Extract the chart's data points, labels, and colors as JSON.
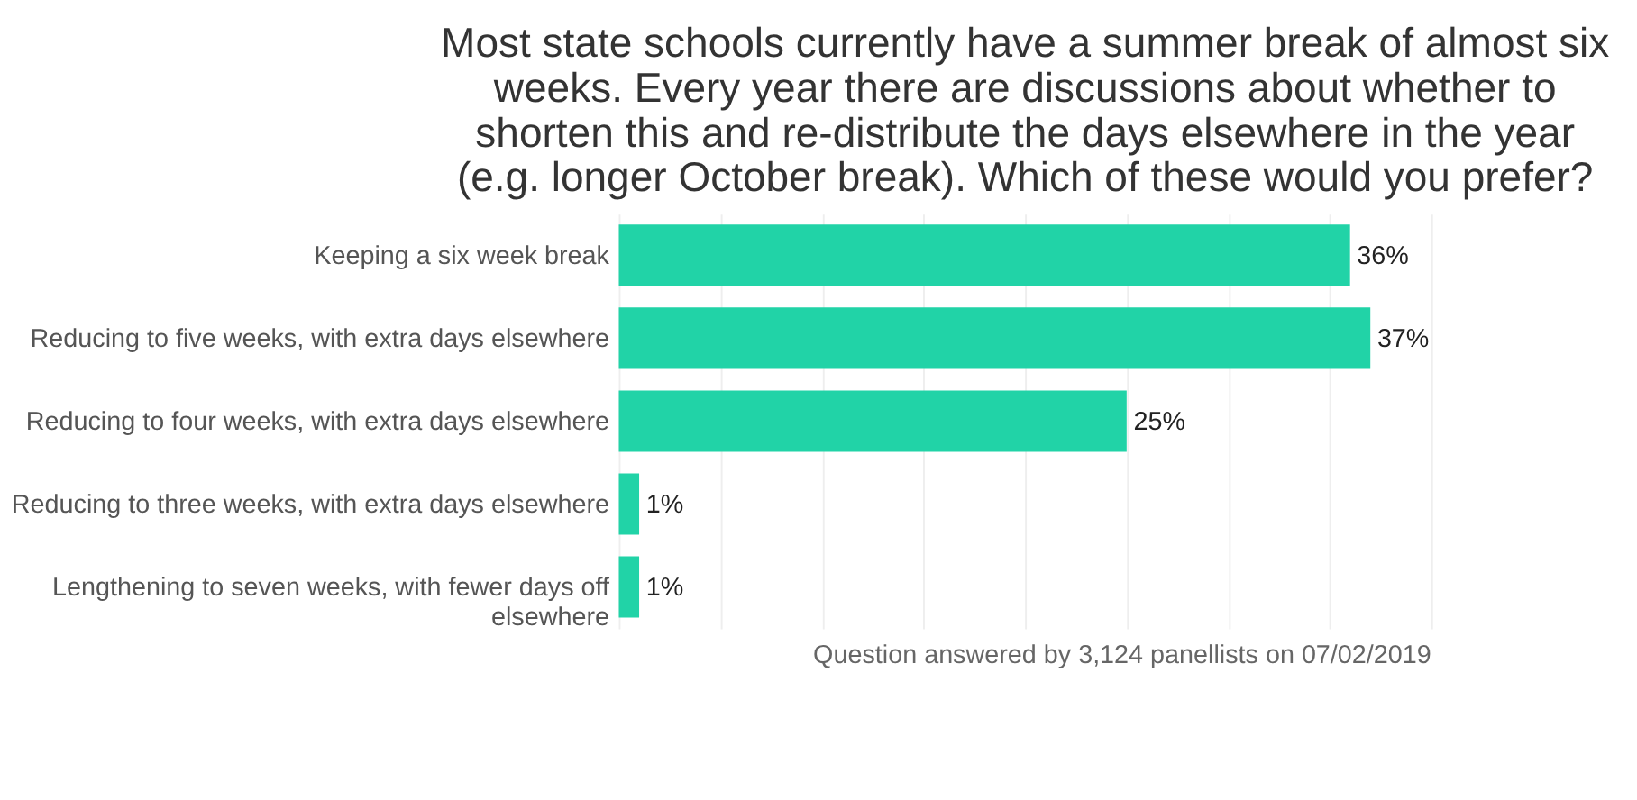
{
  "chart_data": {
    "type": "bar",
    "orientation": "horizontal",
    "title": "Most state schools currently have a summer break of almost six weeks. Every year there are discussions about whether to shorten this and re-distribute the days elsewhere in the year (e.g. longer October break). Which of these would you prefer?",
    "categories": [
      "Keeping a six week break",
      "Reducing to five weeks, with extra days elsewhere",
      "Reducing to four weeks, with extra days elsewhere",
      "Reducing to three weeks, with extra days elsewhere",
      "Lengthening to seven weeks, with fewer days off elsewhere"
    ],
    "values": [
      36,
      37,
      25,
      1,
      1
    ],
    "color": "#21d3a7",
    "value_labels": [
      "36%",
      "37%",
      "25%",
      "1%",
      "1%"
    ],
    "xlim": [
      0,
      40
    ],
    "xticks": [
      {
        "value": 0,
        "label": null
      },
      {
        "value": 5,
        "label": null
      },
      {
        "value": 10,
        "label": null
      },
      {
        "value": 15,
        "label": null
      },
      {
        "value": 20,
        "label": null
      },
      {
        "value": 25,
        "label": null
      },
      {
        "value": 30,
        "label": null
      },
      {
        "value": 35,
        "label": null
      },
      {
        "value": 40,
        "label": null
      }
    ],
    "tick_labels": "y",
    "grid": "x",
    "annotations": [
      "Question answered by 3,124 panellists on 07/02/2019"
    ]
  }
}
